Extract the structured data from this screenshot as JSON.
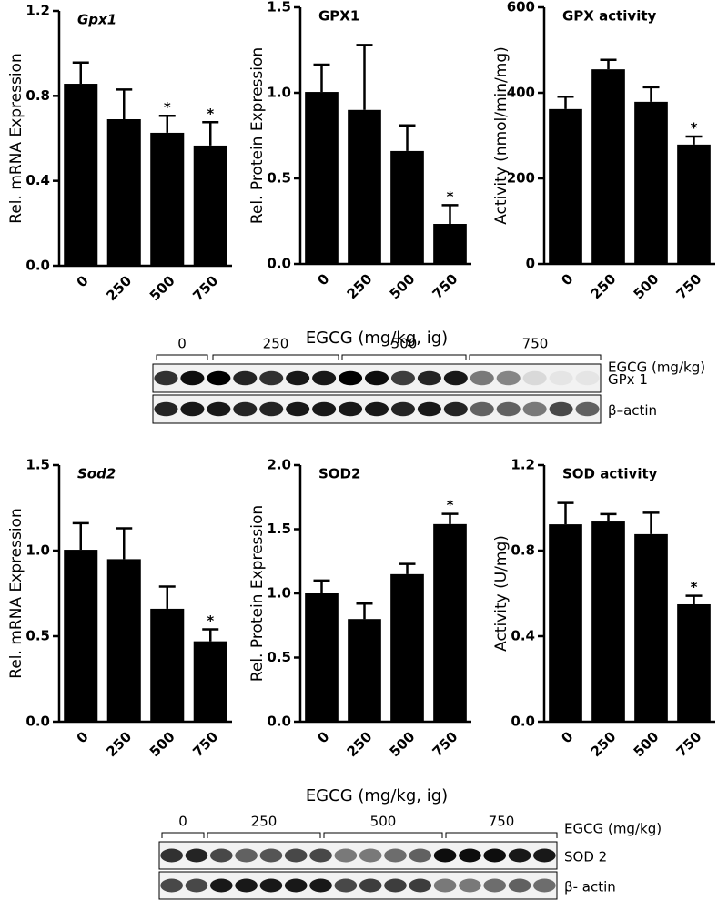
{
  "chart_data": [
    {
      "type": "bar",
      "title": "Gpx1",
      "title_italic": true,
      "ylabel": "Rel. mRNA Expression",
      "categories": [
        "0",
        "250",
        "500",
        "750"
      ],
      "values": [
        0.857,
        0.69,
        0.626,
        0.566
      ],
      "errors": [
        0.1,
        0.14,
        0.08,
        0.11
      ],
      "significance": [
        null,
        null,
        "*",
        "*"
      ],
      "color": "#000000",
      "ylim": [
        0,
        1.2
      ],
      "yticks": [
        {
          "value": 0,
          "label": "0.0"
        },
        0.4,
        0.8,
        1.2
      ]
    },
    {
      "type": "bar",
      "title": "GPX1",
      "title_italic": false,
      "ylabel": "Rel. Protein  Expression",
      "xlabel": "EGCG (mg/kg, ig)",
      "categories": [
        "0",
        "250",
        "500",
        "750"
      ],
      "values": [
        1.005,
        0.9,
        0.66,
        0.234
      ],
      "errors": [
        0.16,
        0.38,
        0.15,
        0.11
      ],
      "significance": [
        null,
        null,
        null,
        "*"
      ],
      "color": "#000000",
      "ylim": [
        0,
        1.5
      ],
      "yticks": [
        {
          "value": 0,
          "label": "0.0"
        },
        0.5,
        {
          "value": 1,
          "label": "1.0"
        },
        1.5
      ]
    },
    {
      "type": "bar",
      "title": "GPX activity",
      "title_italic": false,
      "ylabel": "Activity (nmol/min/mg)",
      "categories": [
        "0",
        "250",
        "500",
        "750"
      ],
      "values": [
        362,
        455,
        379,
        279
      ],
      "errors": [
        29,
        22,
        34,
        19
      ],
      "significance": [
        null,
        null,
        null,
        "*"
      ],
      "color": "#000000",
      "ylim": [
        0,
        600
      ],
      "yticks": [
        0,
        200,
        400,
        600
      ]
    },
    {
      "type": "bar",
      "title": "Sod2",
      "title_italic": true,
      "ylabel": "Rel. mRNA Expression",
      "categories": [
        "0",
        "250",
        "500",
        "750"
      ],
      "values": [
        1.005,
        0.95,
        0.66,
        0.47
      ],
      "errors": [
        0.155,
        0.18,
        0.13,
        0.07
      ],
      "significance": [
        null,
        null,
        null,
        "*"
      ],
      "color": "#000000",
      "ylim": [
        0,
        1.5
      ],
      "yticks": [
        {
          "value": 0,
          "label": "0.0"
        },
        0.5,
        {
          "value": 1,
          "label": "1.0"
        },
        1.5
      ]
    },
    {
      "type": "bar",
      "title": "SOD2",
      "title_italic": false,
      "ylabel": "Rel. Protein  Expression",
      "xlabel": "EGCG (mg/kg, ig)",
      "categories": [
        "0",
        "250",
        "500",
        "750"
      ],
      "values": [
        1.0,
        0.8,
        1.15,
        1.54
      ],
      "errors": [
        0.1,
        0.12,
        0.08,
        0.08
      ],
      "significance": [
        null,
        null,
        null,
        "*"
      ],
      "color": "#000000",
      "ylim": [
        0,
        2.0
      ],
      "yticks": [
        {
          "value": 0,
          "label": "0.0"
        },
        0.5,
        {
          "value": 1,
          "label": "1.0"
        },
        1.5,
        {
          "value": 2,
          "label": "2.0"
        }
      ]
    },
    {
      "type": "bar",
      "title": "SOD activity",
      "title_italic": false,
      "ylabel": "Activity (U/mg)",
      "categories": [
        "0",
        "250",
        "500",
        "750"
      ],
      "values": [
        0.923,
        0.936,
        0.877,
        0.549
      ],
      "errors": [
        0.1,
        0.035,
        0.1,
        0.04
      ],
      "significance": [
        null,
        null,
        null,
        "*"
      ],
      "color": "#000000",
      "ylim": [
        0,
        1.2
      ],
      "yticks": [
        {
          "value": 0,
          "label": "0.0"
        },
        0.4,
        0.8,
        1.2
      ]
    }
  ],
  "blots": [
    {
      "groups": [
        "0",
        "250",
        "500",
        "750"
      ],
      "label": "EGCG (mg/kg)",
      "rows": [
        "GPx 1",
        "β–actin"
      ]
    },
    {
      "groups": [
        "0",
        "250",
        "500",
        "750"
      ],
      "label": "EGCG (mg/kg)",
      "rows": [
        "SOD 2",
        "β- actin"
      ]
    }
  ]
}
